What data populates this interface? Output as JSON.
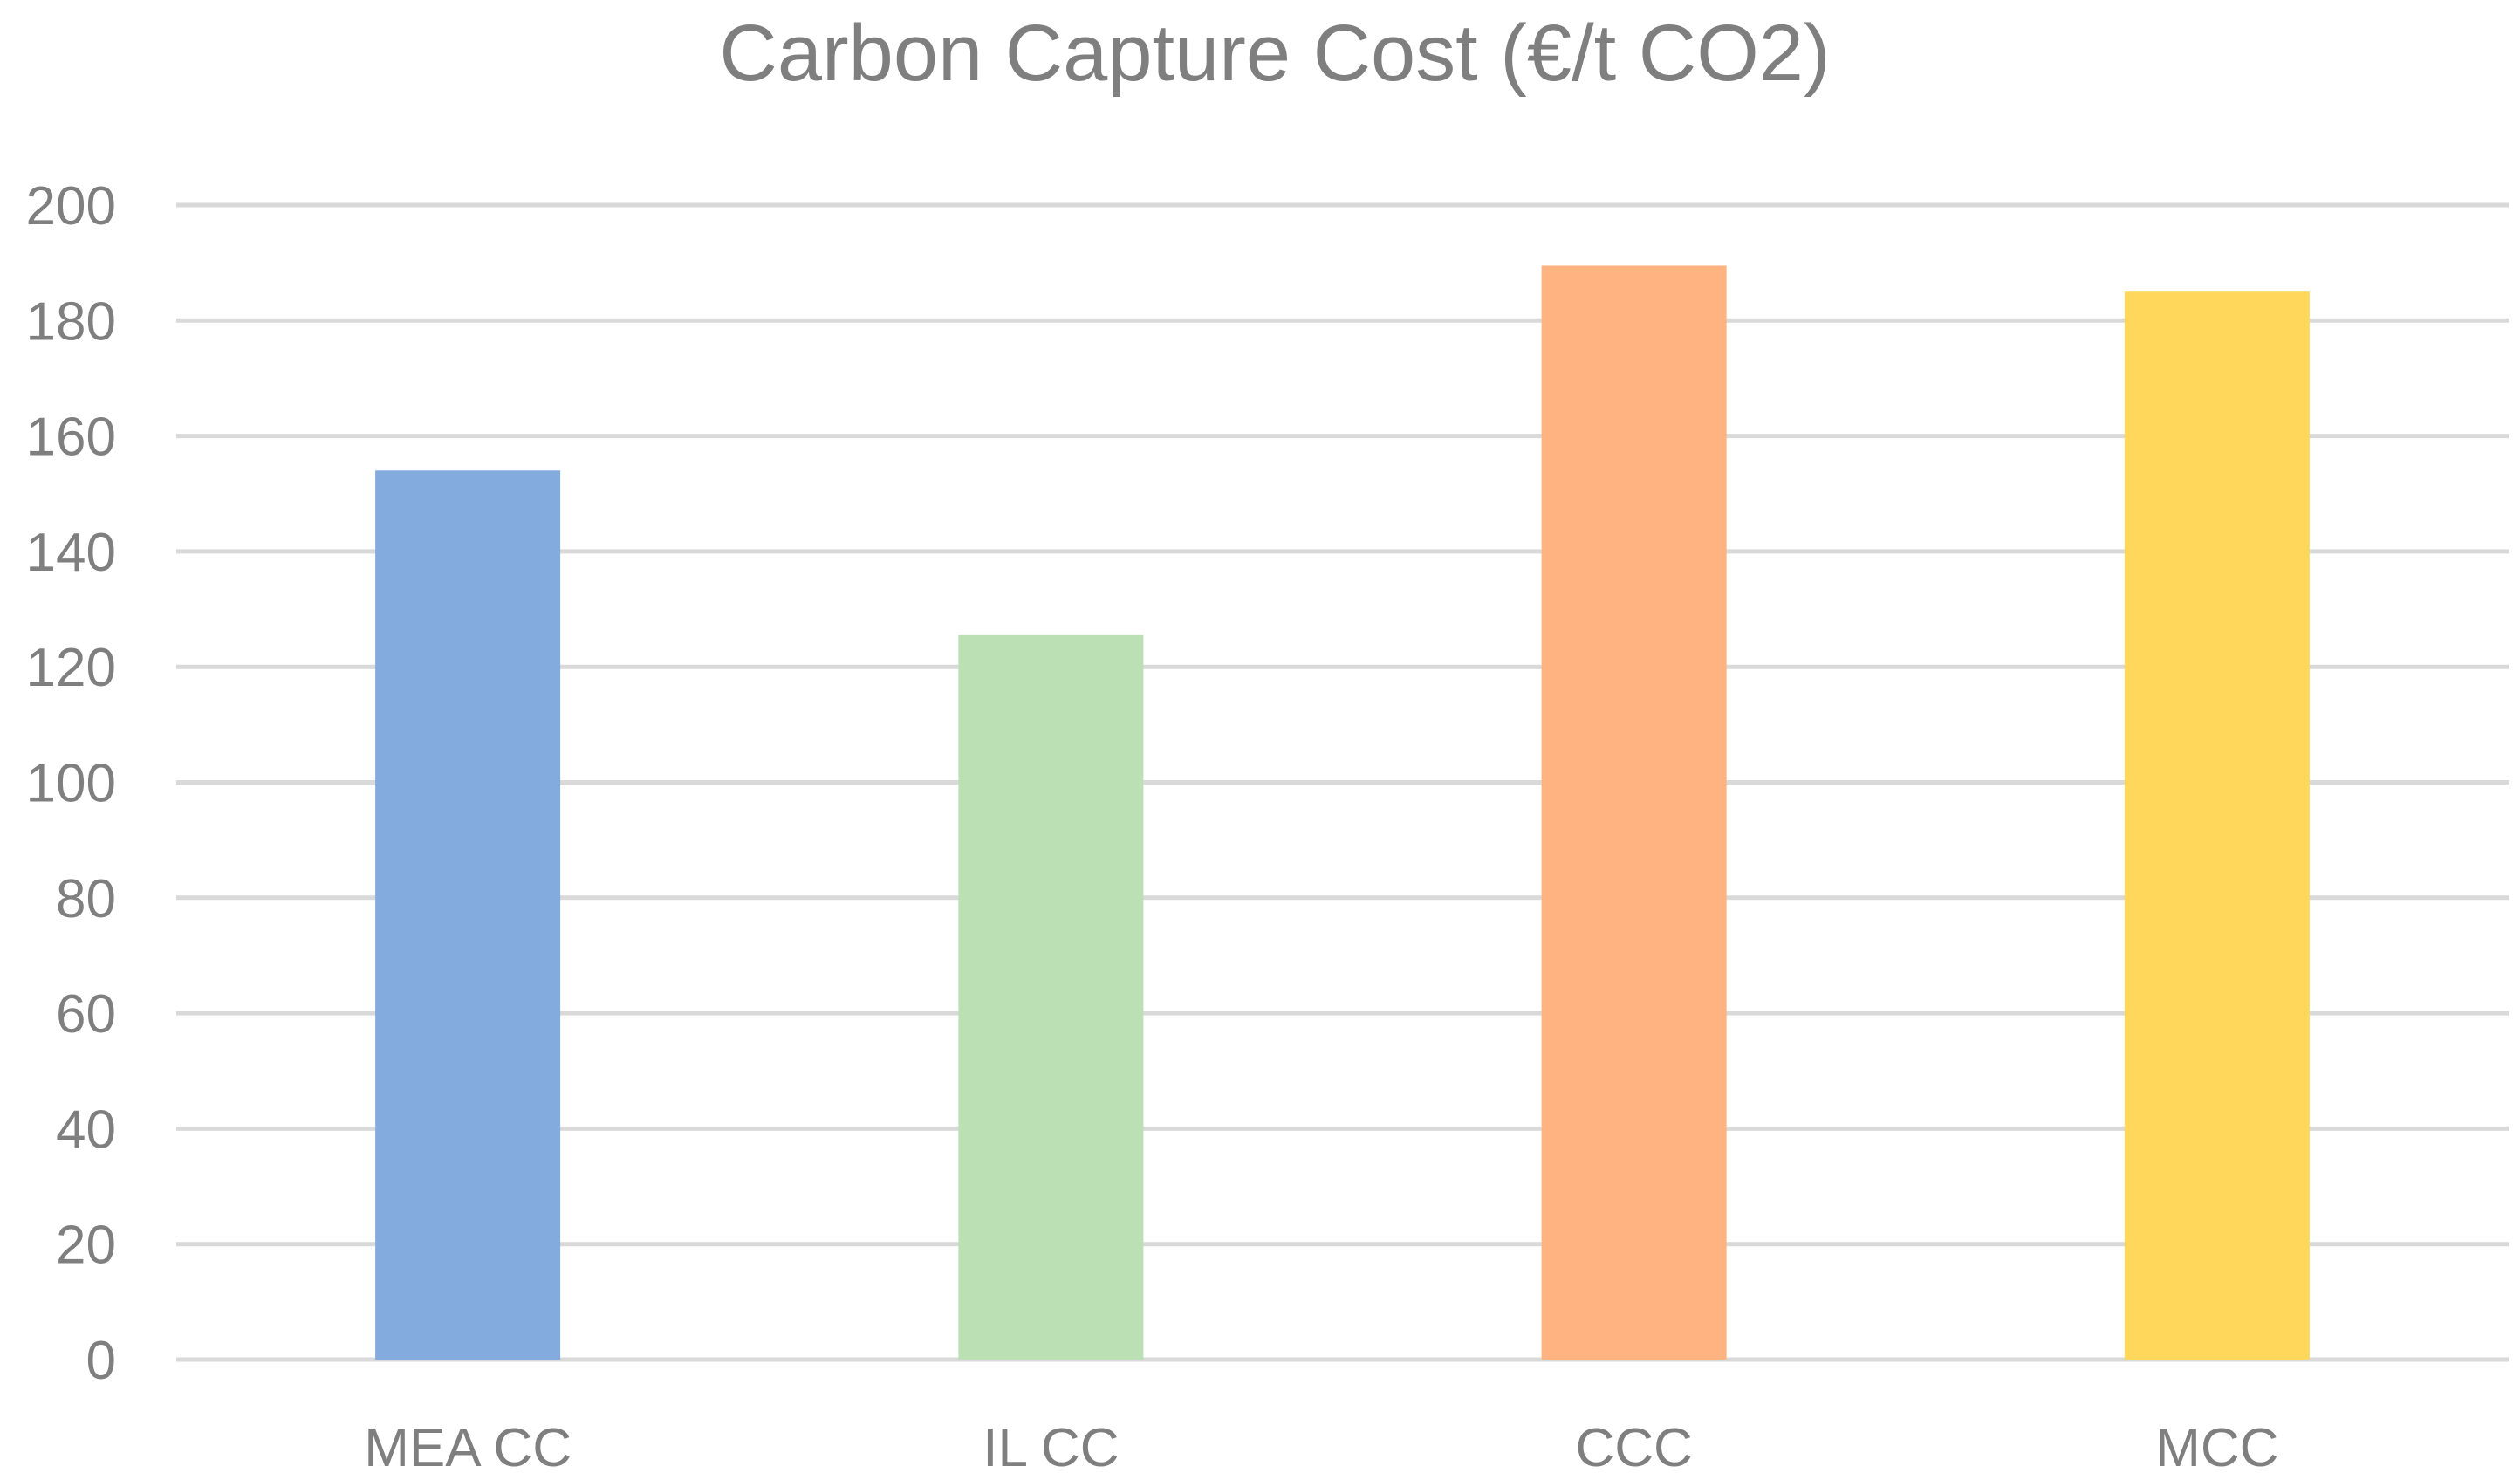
{
  "chart_data": {
    "type": "bar",
    "title": "Carbon Capture Cost (€/t CO2)",
    "xlabel": "",
    "ylabel": "",
    "categories": [
      "MEA CC",
      "IL CC",
      "CCC",
      "MCC"
    ],
    "values": [
      154,
      125.5,
      189.5,
      185
    ],
    "bar_colors": [
      "#84ABDD",
      "#BAE0B3",
      "#FFB381",
      "#FFD85B"
    ],
    "ylim": [
      0,
      200
    ],
    "yticks": [
      "0",
      "20",
      "40",
      "60",
      "80",
      "100",
      "120",
      "140",
      "160",
      "180",
      "200"
    ],
    "grid": true,
    "legend": "none"
  },
  "colors": {
    "gridline": "#D9D9D9",
    "text": "#7F7F7F",
    "background": "#FFFFFF"
  }
}
